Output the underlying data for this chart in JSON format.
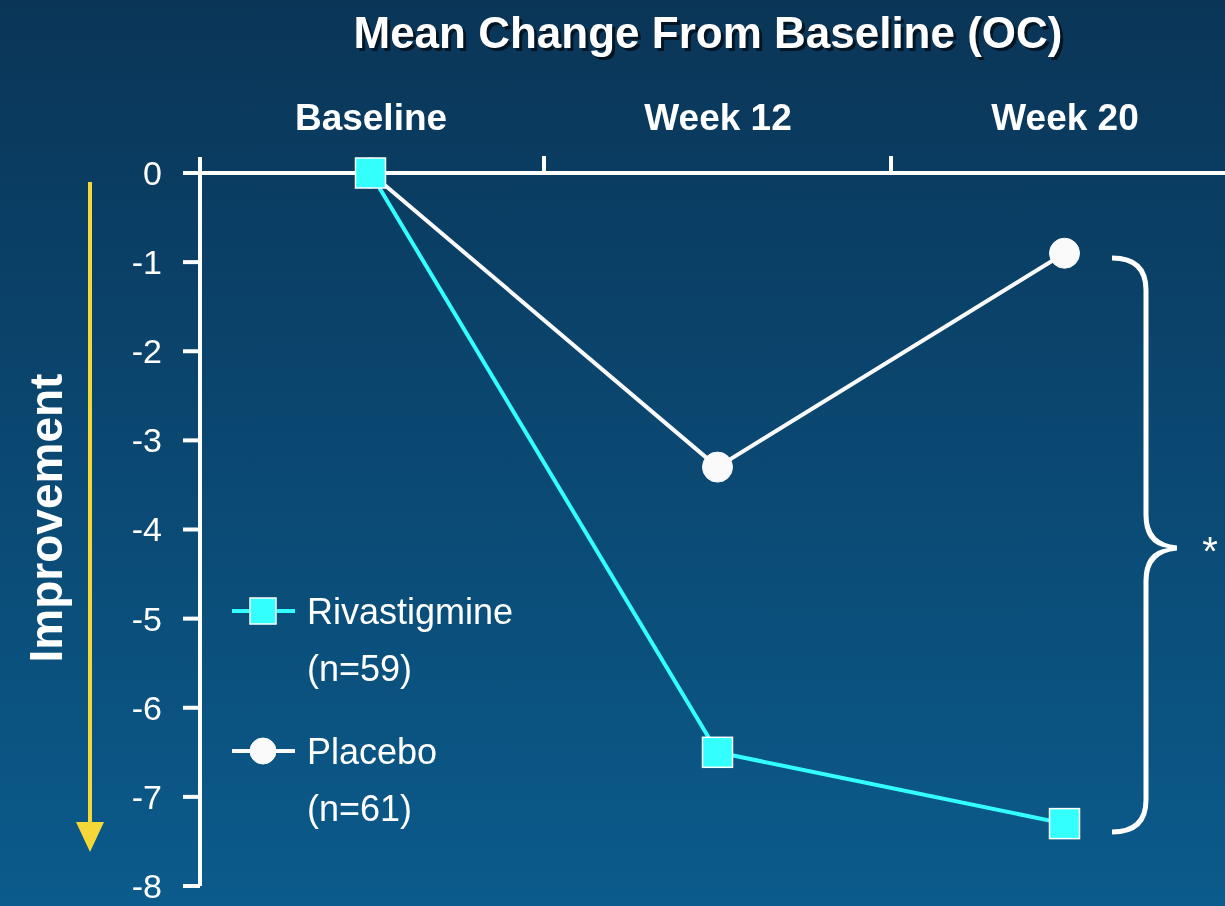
{
  "chart_data": {
    "type": "line",
    "title": "Mean Change From Baseline (OC)",
    "ylabel": "Improvement",
    "categories": [
      "Baseline",
      "Week 12",
      "Week 20"
    ],
    "series": [
      {
        "name": "Rivastigmine (n=59)",
        "color": "#33ffff",
        "marker": "square",
        "values": [
          0,
          -6.5,
          -7.3
        ]
      },
      {
        "name": "Placebo (n=61)",
        "color": "#fafafa",
        "marker": "circle",
        "values": [
          0,
          -3.3,
          -0.9
        ]
      }
    ],
    "ylim": [
      -8,
      0
    ],
    "yticks": [
      0,
      -1,
      -2,
      -3,
      -4,
      -5,
      -6,
      -7,
      -8
    ],
    "legend": "bottom left",
    "grid": false,
    "annotations": [
      "*"
    ]
  }
}
